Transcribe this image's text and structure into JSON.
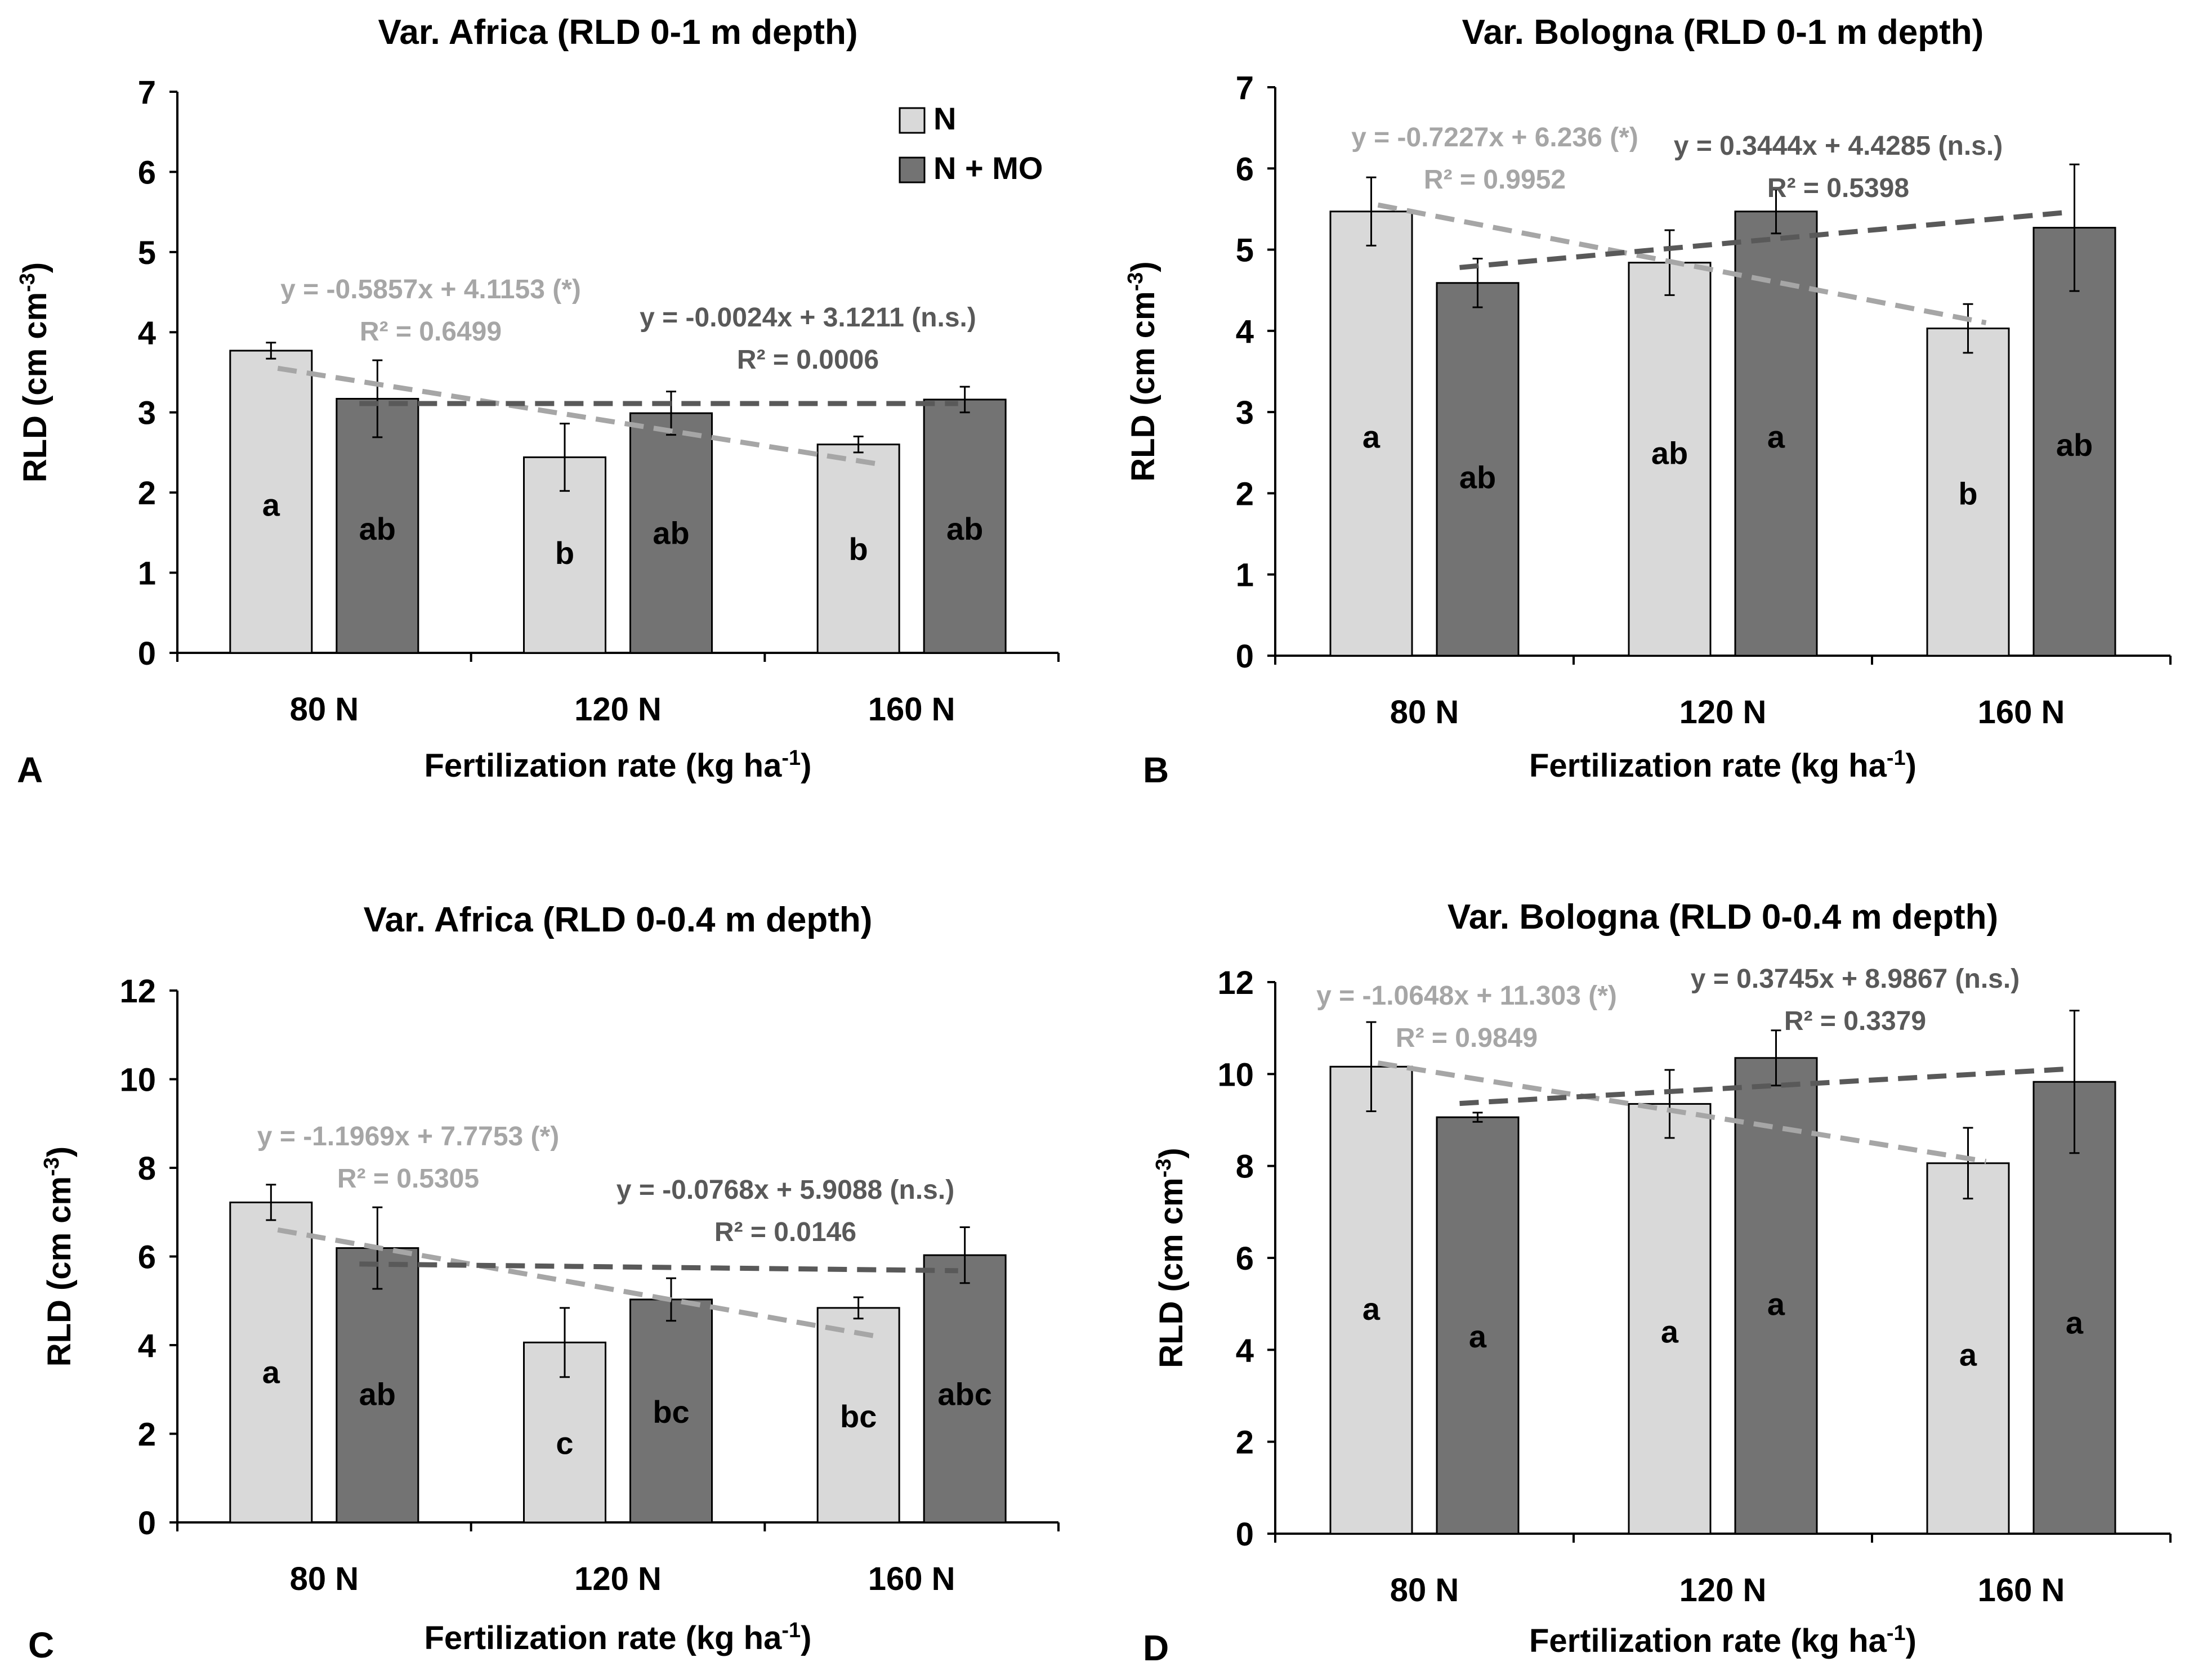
{
  "colors": {
    "n": "#d9d9d9",
    "nmo": "#737373",
    "trend_n": "#a6a6a6",
    "trend_nmo": "#595959",
    "text": "#000000"
  },
  "legend": {
    "n": "N",
    "nmo": "N + MO"
  },
  "chart_data": [
    {
      "panel": "A",
      "type": "bar",
      "title": "Var. Africa (RLD 0-1 m depth)",
      "xlabel": "Fertilization rate (kg ha",
      "xlabel_sup": "-1",
      "xlabel_end": ")",
      "ylabel": "RLD (cm cm",
      "ylabel_sup": "-3",
      "ylabel_end": ")",
      "ylim": [
        0,
        7
      ],
      "yticks": [
        "0",
        "1",
        "2",
        "3",
        "4",
        "5",
        "6",
        "7"
      ],
      "categories": [
        "80 N",
        "120 N",
        "160 N"
      ],
      "legend": true,
      "series": [
        {
          "name": "N",
          "values": [
            3.77,
            2.44,
            2.6
          ],
          "errors": [
            0.1,
            0.42,
            0.1
          ],
          "letters": [
            "a",
            "b",
            "b"
          ],
          "letter_y": [
            1.85,
            1.25,
            1.3
          ]
        },
        {
          "name": "N + MO",
          "values": [
            3.17,
            2.99,
            3.16
          ],
          "errors": [
            0.48,
            0.27,
            0.16
          ],
          "letters": [
            "ab",
            "ab",
            "ab"
          ],
          "letter_y": [
            1.55,
            1.5,
            1.55
          ]
        }
      ],
      "trendlines": [
        {
          "series": "N",
          "equation": "y = -0.5857x + 4.1153 (*)",
          "r2": "R² = 0.6499",
          "y_start": 3.55,
          "y_end": 2.36
        },
        {
          "series": "N + MO",
          "equation": "y = -0.0024x + 3.1211 (n.s.)",
          "r2": "R² = 0.0006",
          "y_start": 3.11,
          "y_end": 3.11
        }
      ]
    },
    {
      "panel": "B",
      "type": "bar",
      "title": "Var. Bologna (RLD 0-1 m depth)",
      "xlabel": "Fertilization rate (kg ha",
      "xlabel_sup": "-1",
      "xlabel_end": ")",
      "ylabel": "RLD (cm cm",
      "ylabel_sup": "-3",
      "ylabel_end": ")",
      "ylim": [
        0,
        7
      ],
      "yticks": [
        "0",
        "1",
        "2",
        "3",
        "4",
        "5",
        "6",
        "7"
      ],
      "categories": [
        "80 N",
        "120 N",
        "160 N"
      ],
      "legend": false,
      "series": [
        {
          "name": "N",
          "values": [
            5.47,
            4.84,
            4.03
          ],
          "errors": [
            0.42,
            0.4,
            0.3
          ],
          "letters": [
            "a",
            "ab",
            "b"
          ],
          "letter_y": [
            2.7,
            2.5,
            2.0
          ]
        },
        {
          "name": "N + MO",
          "values": [
            4.59,
            5.47,
            5.27
          ],
          "errors": [
            0.3,
            0.27,
            0.78
          ],
          "letters": [
            "ab",
            "a",
            "ab"
          ],
          "letter_y": [
            2.2,
            2.7,
            2.6
          ]
        }
      ],
      "trendlines": [
        {
          "series": "N",
          "equation": "y = -0.7227x + 6.236 (*)",
          "r2": "R² = 0.9952",
          "y_start": 5.55,
          "y_end": 4.1
        },
        {
          "series": "N + MO",
          "equation": "y = 0.3444x + 4.4285 (n.s.)",
          "r2": "R² = 0.5398",
          "y_start": 4.78,
          "y_end": 5.46
        }
      ]
    },
    {
      "panel": "C",
      "type": "bar",
      "title": "Var. Africa (RLD 0-0.4 m depth)",
      "xlabel": "Fertilization rate (kg ha",
      "xlabel_sup": "-1",
      "xlabel_end": ")",
      "ylabel": "RLD (cm cm",
      "ylabel_sup": "-3",
      "ylabel_end": ")",
      "ylim": [
        0,
        12
      ],
      "yticks": [
        "0",
        "2",
        "4",
        "6",
        "8",
        "10",
        "12"
      ],
      "categories": [
        "80 N",
        "120 N",
        "160 N"
      ],
      "legend": false,
      "series": [
        {
          "name": "N",
          "values": [
            7.22,
            4.06,
            4.84
          ],
          "errors": [
            0.4,
            0.78,
            0.24
          ],
          "letters": [
            "a",
            "c",
            "bc"
          ],
          "letter_y": [
            3.4,
            1.8,
            2.4
          ]
        },
        {
          "name": "N + MO",
          "values": [
            6.19,
            5.03,
            6.03
          ],
          "errors": [
            0.92,
            0.48,
            0.63
          ],
          "letters": [
            "ab",
            "bc",
            "abc"
          ],
          "letter_y": [
            2.9,
            2.5,
            2.9
          ]
        }
      ],
      "trendlines": [
        {
          "series": "N",
          "equation": "y = -1.1969x + 7.7753 (*)",
          "r2": "R² = 0.5305",
          "y_start": 6.6,
          "y_end": 4.2
        },
        {
          "series": "N + MO",
          "equation": "y = -0.0768x + 5.9088 (n.s.)",
          "r2": "R² = 0.0146",
          "y_start": 5.83,
          "y_end": 5.68
        }
      ]
    },
    {
      "panel": "D",
      "type": "bar",
      "title": "Var. Bologna (RLD 0-0.4 m depth)",
      "xlabel": "Fertilization rate (kg ha",
      "xlabel_sup": "-1",
      "xlabel_end": ")",
      "ylabel": "RLD (cm cm",
      "ylabel_sup": "-3",
      "ylabel_end": ")",
      "ylim": [
        0,
        12
      ],
      "yticks": [
        "0",
        "2",
        "4",
        "6",
        "8",
        "10",
        "12"
      ],
      "categories": [
        "80 N",
        "120 N",
        "160 N"
      ],
      "legend": false,
      "series": [
        {
          "name": "N",
          "values": [
            10.16,
            9.35,
            8.06
          ],
          "errors": [
            0.97,
            0.74,
            0.77
          ],
          "letters": [
            "a",
            "a",
            "a"
          ],
          "letter_y": [
            4.9,
            4.4,
            3.9
          ]
        },
        {
          "name": "N + MO",
          "values": [
            9.06,
            10.35,
            9.83
          ],
          "errors": [
            0.1,
            0.6,
            1.55
          ],
          "letters": [
            "a",
            "a",
            "a"
          ],
          "letter_y": [
            4.3,
            5.0,
            4.6
          ]
        }
      ],
      "trendlines": [
        {
          "series": "N",
          "equation": "y = -1.0648x + 11.303 (*)",
          "r2": "R² = 0.9849",
          "y_start": 10.24,
          "y_end": 8.1
        },
        {
          "series": "N + MO",
          "equation": "y = 0.3745x + 8.9867 (n.s.)",
          "r2": "R² = 0.3379",
          "y_start": 9.36,
          "y_end": 10.11
        }
      ]
    }
  ]
}
